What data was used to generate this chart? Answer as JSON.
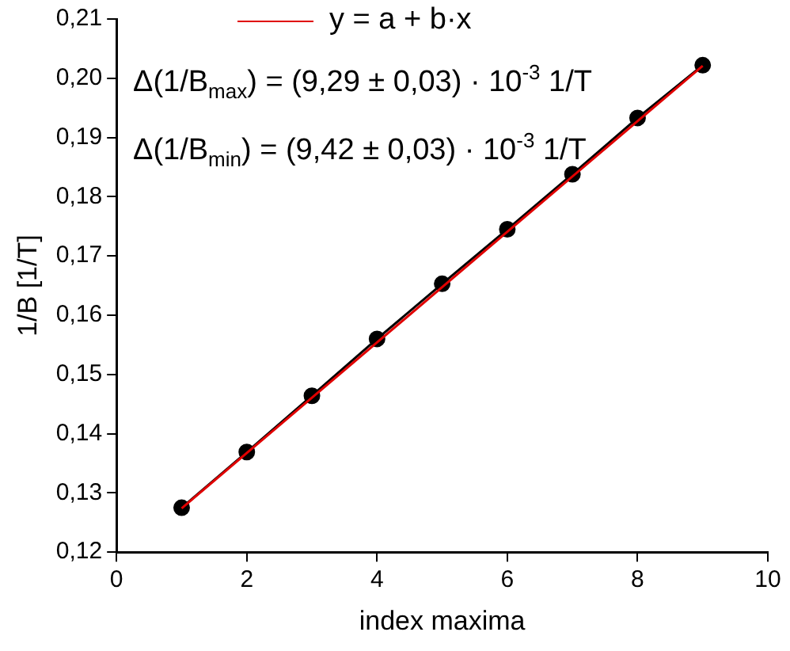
{
  "chart_data": {
    "type": "line",
    "xlabel": "index maxima",
    "ylabel": "1/B [1/T]",
    "x": [
      1,
      2,
      3,
      4,
      5,
      6,
      7,
      8,
      9
    ],
    "series": [
      {
        "color": "#000000",
        "values": [
          0.1275,
          0.1369,
          0.1464,
          0.156,
          0.1653,
          0.1745,
          0.1838,
          0.1933,
          0.2022
        ],
        "marker": "circle"
      },
      {
        "name": "y = a + b·x",
        "type": "line",
        "color": "#e00000",
        "x": [
          1,
          9
        ],
        "values": [
          0.1274,
          0.2021
        ],
        "marker": "none"
      }
    ],
    "xlim": [
      0,
      10
    ],
    "xticks": [
      0,
      2,
      4,
      6,
      8,
      10
    ],
    "ylim": [
      0.12,
      0.21
    ],
    "yticks": [
      {
        "value": 0.12,
        "label": "0,12"
      },
      {
        "value": 0.13,
        "label": "0,13"
      },
      {
        "value": 0.14,
        "label": "0,14"
      },
      {
        "value": 0.15,
        "label": "0,15"
      },
      {
        "value": 0.16,
        "label": "0,16"
      },
      {
        "value": 0.17,
        "label": "0,17"
      },
      {
        "value": 0.18,
        "label": "0,18"
      },
      {
        "value": 0.19,
        "label": "0,19"
      },
      {
        "value": 0.2,
        "label": "0,20"
      },
      {
        "value": 0.21,
        "label": "0,21"
      }
    ],
    "grid": false,
    "legend": "top",
    "line_style": "solid",
    "annotations": [
      "Δ(1/B$_{max}$) = (9,29 ± 0,03) · 10$^{-3}$ 1/T",
      "Δ(1/B$_{min}$) = (9,42 ± 0,03) · 10$^{-3}$ 1/T"
    ]
  }
}
